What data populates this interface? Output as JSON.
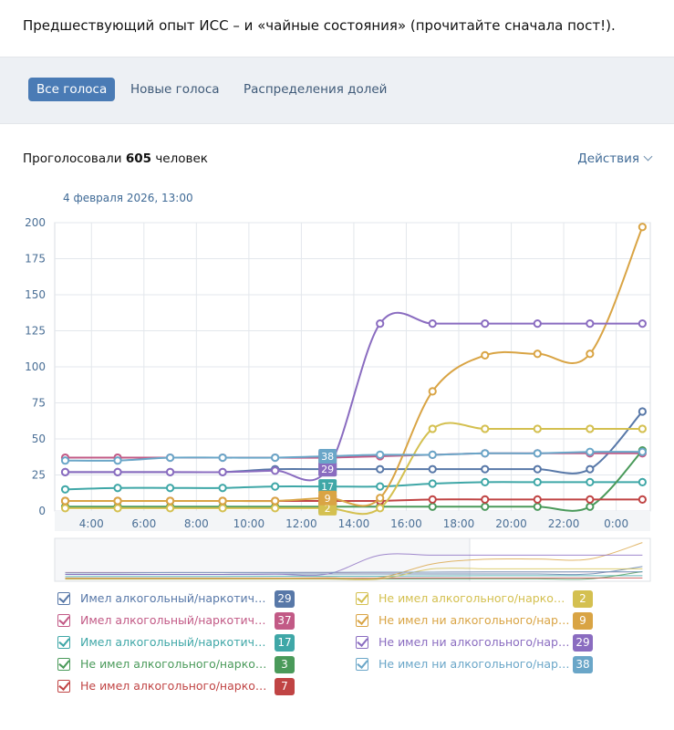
{
  "header": {
    "title": "Предшествующий опыт ИСС – и «чайные состояния» (прочитайте сначала пост!)."
  },
  "tabs": [
    {
      "label": "Все голоса",
      "active": true
    },
    {
      "label": "Новые голоса",
      "active": false
    },
    {
      "label": "Распределения долей",
      "active": false
    }
  ],
  "summary": {
    "prefix": "Проголосовали",
    "count": "605",
    "suffix": "человек"
  },
  "actions": {
    "label": "Действия"
  },
  "chart_data": {
    "type": "line",
    "timestamp": "4 февраля 2026, 13:00",
    "ylim": [
      0,
      200
    ],
    "yticks": [
      0,
      25,
      50,
      75,
      100,
      125,
      150,
      175,
      200
    ],
    "xtick_labels": [
      "4:00",
      "6:00",
      "8:00",
      "10:00",
      "12:00",
      "14:00",
      "16:00",
      "18:00",
      "20:00",
      "22:00",
      "0:00"
    ],
    "xtick_hours": [
      4,
      6,
      8,
      10,
      12,
      14,
      16,
      18,
      20,
      22,
      24
    ],
    "grid": true,
    "hover_hour": 13,
    "series": [
      {
        "name": "Имел алкогольный/наркотический...",
        "color": "#5878a8",
        "value": 29,
        "x": [
          3,
          5,
          7,
          9,
          11,
          13,
          15,
          17,
          19,
          21,
          23,
          25
        ],
        "y": [
          27,
          27,
          27,
          27,
          29,
          29,
          29,
          29,
          29,
          29,
          29,
          69
        ]
      },
      {
        "name": "Имел алкогольный/наркотический...",
        "color": "#c25a86",
        "value": 37,
        "x": [
          3,
          5,
          7,
          9,
          11,
          13,
          15,
          17,
          19,
          21,
          23,
          25
        ],
        "y": [
          37,
          37,
          37,
          37,
          37,
          37,
          38,
          39,
          40,
          40,
          40,
          40
        ]
      },
      {
        "name": "Имел алкогольный/наркотический...",
        "color": "#3fa7a7",
        "value": 17,
        "x": [
          3,
          5,
          7,
          9,
          11,
          13,
          15,
          17,
          19,
          21,
          23,
          25
        ],
        "y": [
          15,
          16,
          16,
          16,
          17,
          17,
          17,
          19,
          20,
          20,
          20,
          20
        ]
      },
      {
        "name": "Не имел алкогольного/наркотического...",
        "color": "#4a9a5a",
        "value": 3,
        "x": [
          3,
          5,
          7,
          9,
          11,
          13,
          15,
          17,
          19,
          21,
          23,
          25
        ],
        "y": [
          3,
          3,
          3,
          3,
          3,
          3,
          3,
          3,
          3,
          3,
          3,
          42
        ]
      },
      {
        "name": "Не имел алкогольного/наркотического...",
        "color": "#c04444",
        "value": 7,
        "x": [
          3,
          5,
          7,
          9,
          11,
          13,
          15,
          17,
          19,
          21,
          23,
          25
        ],
        "y": [
          7,
          7,
          7,
          7,
          7,
          7,
          7,
          8,
          8,
          8,
          8,
          8
        ]
      },
      {
        "name": "Не имел алкогольного/наркотического...",
        "color": "#d4c050",
        "value": 2,
        "x": [
          3,
          5,
          7,
          9,
          11,
          13,
          15,
          17,
          19,
          21,
          23,
          25
        ],
        "y": [
          2,
          2,
          2,
          2,
          2,
          2,
          2,
          57,
          57,
          57,
          57,
          57
        ]
      },
      {
        "name": "Не имел ни алкогольного/наркотического...",
        "color": "#d9a444",
        "value": 9,
        "x": [
          3,
          5,
          7,
          9,
          11,
          13,
          15,
          17,
          19,
          21,
          23,
          25
        ],
        "y": [
          7,
          7,
          7,
          7,
          7,
          9,
          9,
          83,
          108,
          109,
          109,
          197
        ]
      },
      {
        "name": "Не имел ни алкогольного/наркотического...",
        "color": "#8a6cc0",
        "value": 29,
        "x": [
          3,
          5,
          7,
          9,
          11,
          13,
          15,
          17,
          19,
          21,
          23,
          25
        ],
        "y": [
          27,
          27,
          27,
          27,
          28,
          29,
          130,
          130,
          130,
          130,
          130,
          130
        ]
      },
      {
        "name": "Не имел ни алкогольного/наркотического...",
        "color": "#6aa6c8",
        "value": 38,
        "x": [
          3,
          5,
          7,
          9,
          11,
          13,
          15,
          17,
          19,
          21,
          23,
          25
        ],
        "y": [
          35,
          35,
          37,
          37,
          37,
          38,
          39,
          39,
          40,
          40,
          41,
          41
        ]
      }
    ]
  }
}
